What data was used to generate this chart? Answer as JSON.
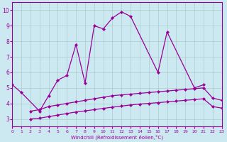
{
  "title": "",
  "xlabel": "Windchill (Refroidissement éolien,°C)",
  "background_color": "#cce8f0",
  "grid_color": "#aacccc",
  "line_color": "#990099",
  "xlim": [
    0,
    23
  ],
  "ylim": [
    2.5,
    10.5
  ],
  "xticks": [
    0,
    1,
    2,
    3,
    4,
    5,
    6,
    7,
    8,
    9,
    10,
    11,
    12,
    13,
    14,
    15,
    16,
    17,
    18,
    19,
    20,
    21,
    22,
    23
  ],
  "yticks": [
    3,
    4,
    5,
    6,
    7,
    8,
    9,
    10
  ],
  "line1_x": [
    0,
    1,
    3,
    4,
    5,
    6,
    7,
    8,
    9,
    10,
    11,
    12,
    13,
    16,
    17,
    20,
    21
  ],
  "line1_y": [
    5.2,
    4.7,
    3.5,
    4.5,
    5.5,
    5.8,
    7.8,
    5.3,
    9.0,
    8.8,
    9.5,
    9.9,
    9.6,
    6.0,
    8.6,
    5.0,
    5.2
  ],
  "line1_gaps": [
    [
      1,
      3
    ],
    [
      13,
      16
    ],
    [
      17,
      20
    ]
  ],
  "line2_x": [
    2,
    3,
    4,
    5,
    6,
    7,
    8,
    9,
    10,
    11,
    12,
    13,
    14,
    15,
    16,
    17,
    18,
    19,
    20,
    21,
    22,
    23
  ],
  "line2_y": [
    3.5,
    3.6,
    3.8,
    3.9,
    4.0,
    4.1,
    4.2,
    4.3,
    4.4,
    4.5,
    4.55,
    4.6,
    4.65,
    4.7,
    4.75,
    4.8,
    4.85,
    4.9,
    4.95,
    5.0,
    4.35,
    4.2
  ],
  "line3_x": [
    2,
    3,
    4,
    5,
    6,
    7,
    8,
    9,
    10,
    11,
    12,
    13,
    14,
    15,
    16,
    17,
    18,
    19,
    20,
    21,
    22,
    23
  ],
  "line3_y": [
    3.0,
    3.05,
    3.15,
    3.25,
    3.35,
    3.45,
    3.52,
    3.6,
    3.68,
    3.76,
    3.83,
    3.9,
    3.96,
    4.0,
    4.05,
    4.1,
    4.15,
    4.2,
    4.25,
    4.3,
    3.8,
    3.7
  ]
}
